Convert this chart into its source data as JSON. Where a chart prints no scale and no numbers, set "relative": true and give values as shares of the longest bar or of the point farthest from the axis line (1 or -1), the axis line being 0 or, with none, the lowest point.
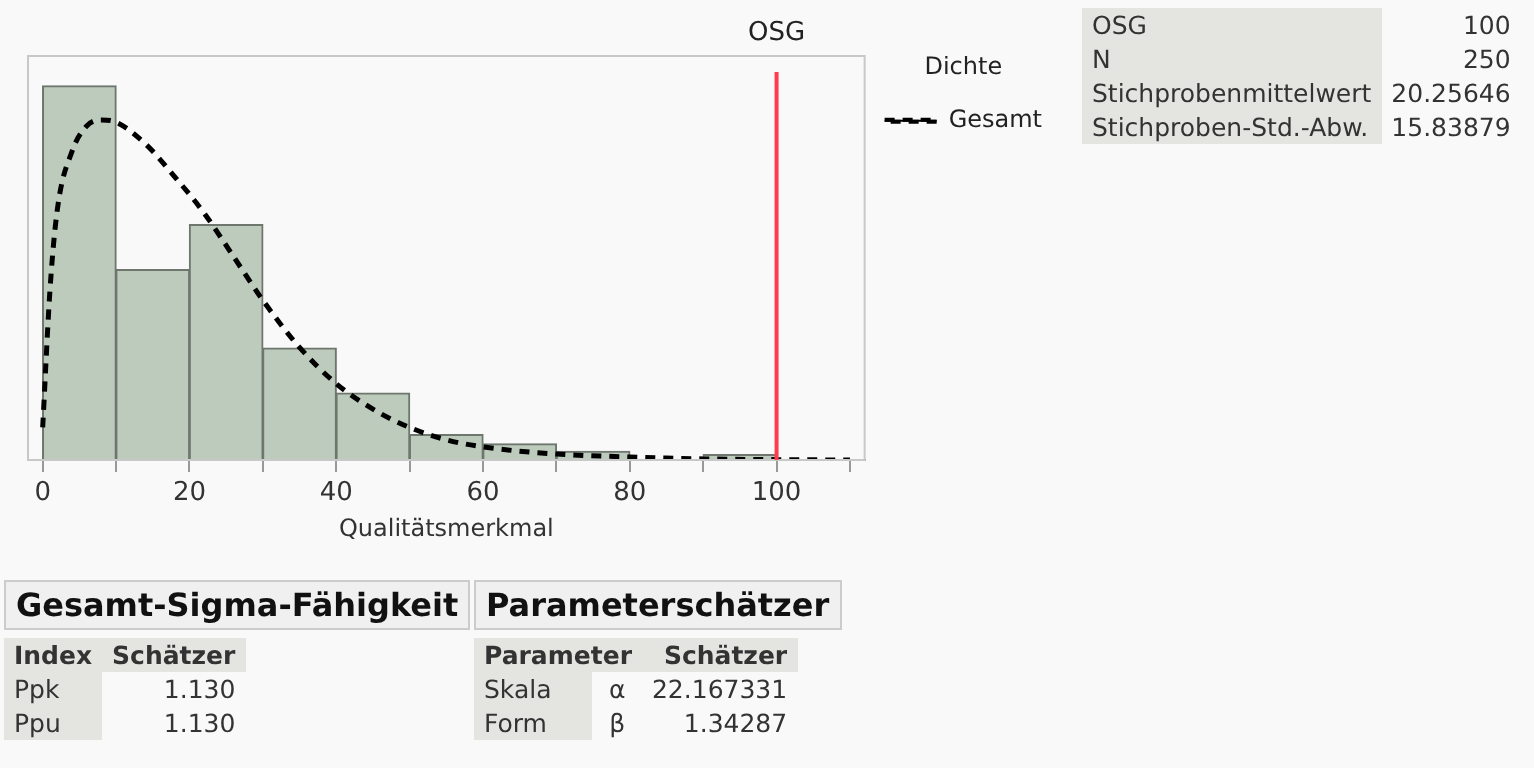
{
  "chart_data": {
    "type": "histogram",
    "relative": true,
    "xlabel": "Qualitätsmerkmal",
    "legend_title": "Dichte",
    "legend": "right",
    "grid": false,
    "bins": [
      0,
      10,
      20,
      30,
      40,
      50,
      60,
      70,
      80,
      90,
      100
    ],
    "values": [
      1,
      0.509,
      0.629,
      0.299,
      0.179,
      0.068,
      0.043,
      0.023,
      0,
      0.014
    ],
    "color": "#bccbbc",
    "series": [
      {
        "name": "Gesamt",
        "type": "line",
        "color": "#000000",
        "line_style": "dashed",
        "marker": "none",
        "x": [
          0,
          1,
          2,
          4,
          6,
          8,
          10,
          14,
          18,
          22,
          26,
          30,
          35,
          40,
          45,
          50,
          55,
          60,
          70,
          80,
          90,
          100,
          110
        ],
        "values": [
          0.087,
          0.456,
          0.67,
          0.825,
          0.893,
          0.909,
          0.903,
          0.845,
          0.757,
          0.66,
          0.544,
          0.427,
          0.301,
          0.204,
          0.136,
          0.087,
          0.054,
          0.035,
          0.016,
          0.008,
          0.003,
          0.001,
          0
        ]
      }
    ],
    "xlim": [
      -2,
      112
    ],
    "xticks": [
      0,
      {
        "value": 10,
        "label": null
      },
      20,
      {
        "value": 30,
        "label": null
      },
      40,
      {
        "value": 50,
        "label": null
      },
      60,
      {
        "value": 70,
        "label": null
      },
      80,
      {
        "value": 90,
        "label": null
      },
      100,
      {
        "value": 110,
        "label": null
      }
    ],
    "ref_lines": [
      {
        "axis": "x",
        "value": 100,
        "label": "OSG",
        "color": "#ff3b4e"
      }
    ],
    "annotations": [
      "OSG",
      "100",
      "N",
      "250",
      "Stichprobenmittelwert",
      "20.25646",
      "Stichproben-Std.-Abw.",
      "15.83879",
      "Gesamt-Sigma-Fähigkeit",
      "Index",
      "Schätzer",
      "Ppk",
      "1.130",
      "Ppu",
      "1.130",
      "Parameterschätzer",
      "Parameter",
      "Schätzer",
      "Skala",
      "α",
      "22.167331",
      "Form",
      "β",
      "1.34287"
    ]
  }
}
